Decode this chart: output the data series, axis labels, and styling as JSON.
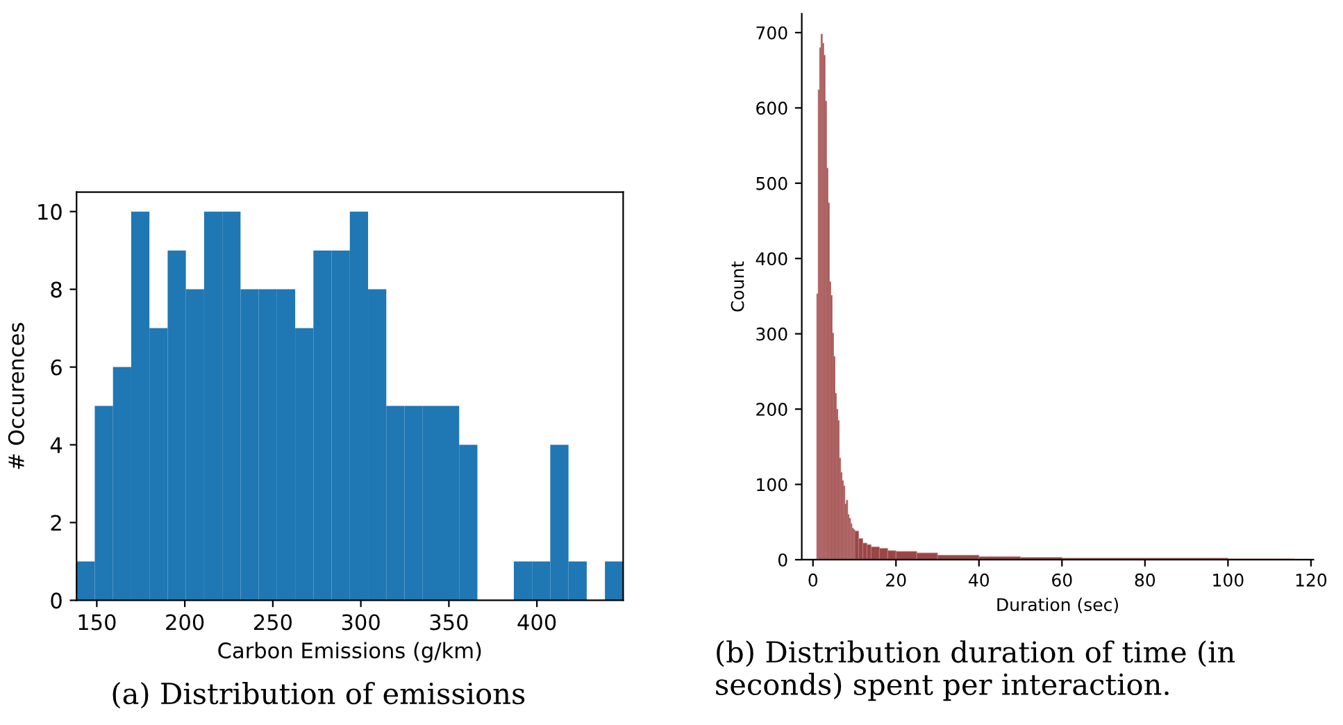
{
  "chart_data": [
    {
      "type": "histogram",
      "xlabel": "Carbon Emissions (g/km)",
      "ylabel": "# Occurences",
      "color": "#1f77b4",
      "grid": false,
      "bins": [
        138.5,
        148.85,
        159.2,
        169.55,
        179.9,
        190.25,
        200.6,
        210.95,
        221.3,
        231.65,
        242.0,
        252.35,
        262.7,
        273.05,
        283.4,
        293.75,
        304.1,
        314.45,
        324.8,
        335.15,
        345.5,
        355.85,
        366.2,
        376.55,
        386.9,
        397.25,
        407.6,
        417.95,
        428.3,
        438.65,
        449.0
      ],
      "values": [
        1,
        5,
        6,
        10,
        7,
        9,
        8,
        10,
        10,
        8,
        8,
        8,
        7,
        9,
        9,
        10,
        8,
        5,
        5,
        5,
        5,
        4,
        0,
        0,
        1,
        1,
        4,
        1,
        0,
        1
      ],
      "xlim": [
        138.5,
        449.0
      ],
      "ylim": [
        0,
        10.5
      ],
      "xticks": [
        150,
        200,
        250,
        300,
        350,
        400
      ],
      "yticks": [
        0,
        2,
        4,
        6,
        8,
        10
      ],
      "annotations": [
        "(a) Distribution of emissions"
      ]
    },
    {
      "type": "histogram",
      "xlabel": "Duration (sec)",
      "ylabel": "Count",
      "color": "#9a4646",
      "grid": false,
      "bins": [
        0.9,
        1.24,
        1.58,
        1.92,
        2.26,
        2.6,
        2.94,
        3.28,
        3.62,
        3.96,
        4.3,
        4.64,
        4.98,
        5.32,
        5.66,
        6.0,
        6.34,
        6.68,
        7.02,
        7.36,
        7.7,
        8.04,
        8.38,
        8.72,
        9.06,
        9.4,
        9.74,
        10.08,
        11,
        12,
        13,
        14,
        16,
        18,
        20,
        25,
        30,
        40,
        50,
        60,
        80,
        100,
        116
      ],
      "values": [
        353,
        624,
        680,
        698,
        686,
        670,
        609,
        520,
        474,
        369,
        351,
        301,
        270,
        221,
        200,
        185,
        135,
        116,
        105,
        98,
        74,
        79,
        60,
        55,
        48,
        42,
        40,
        38,
        28,
        22,
        20,
        17,
        15,
        12,
        11,
        9,
        6,
        4,
        3,
        2,
        2,
        1
      ],
      "xlim": [
        -2.7,
        120.6
      ],
      "ylim": [
        0,
        725
      ],
      "xticks": [
        0,
        20,
        40,
        60,
        80,
        100,
        120
      ],
      "yticks": [
        0,
        100,
        200,
        300,
        400,
        500,
        600,
        700
      ],
      "annotations": [
        "(b) Distribution duration of time (in seconds) spent per interaction."
      ]
    }
  ]
}
